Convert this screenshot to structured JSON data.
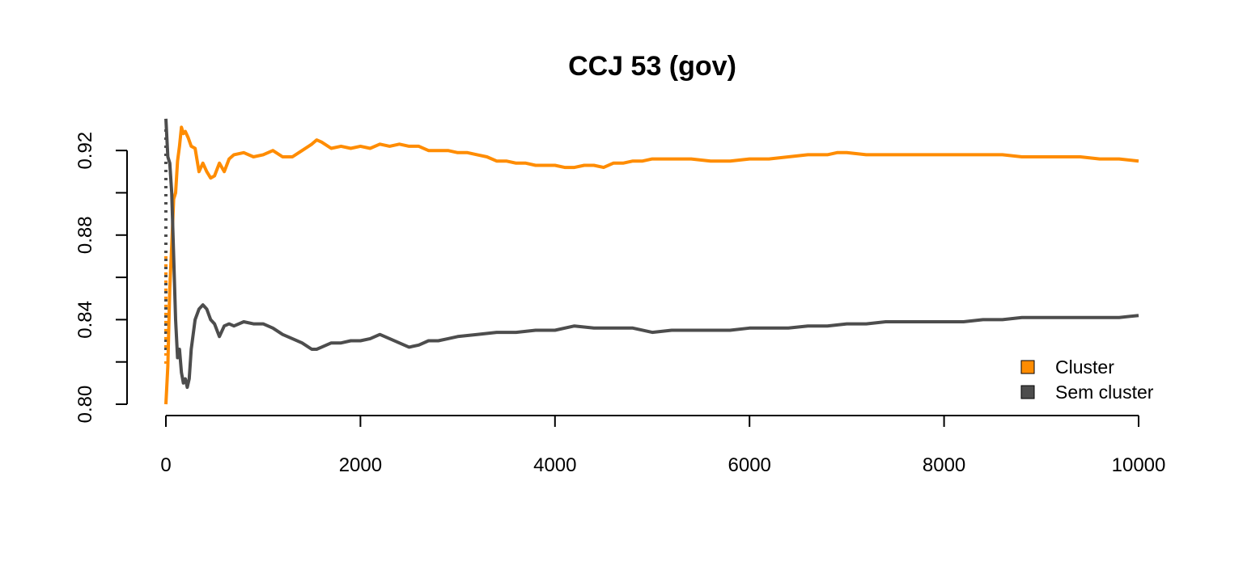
{
  "chart_data": {
    "type": "line",
    "title": "CCJ 53 (gov)",
    "xlabel": "",
    "ylabel": "",
    "xlim": [
      0,
      10000
    ],
    "ylim": [
      0.8,
      0.93
    ],
    "x_ticks": [
      0,
      2000,
      4000,
      6000,
      8000,
      10000
    ],
    "x_tick_labels": [
      "0",
      "2000",
      "4000",
      "6000",
      "8000",
      "10000"
    ],
    "y_ticks": [
      0.8,
      0.82,
      0.84,
      0.86,
      0.88,
      0.9,
      0.92
    ],
    "y_tick_labels": [
      "0.80",
      "",
      "0.84",
      "",
      "0.88",
      "",
      "0.92"
    ],
    "grid": false,
    "legend_position": "bottom-right",
    "series": [
      {
        "name": "Cluster",
        "color": "#FF8C00",
        "x": [
          0,
          20,
          40,
          60,
          80,
          100,
          120,
          140,
          160,
          180,
          200,
          230,
          260,
          300,
          340,
          380,
          420,
          460,
          500,
          550,
          600,
          650,
          700,
          800,
          900,
          1000,
          1100,
          1200,
          1300,
          1400,
          1500,
          1550,
          1600,
          1700,
          1800,
          1900,
          2000,
          2100,
          2200,
          2300,
          2400,
          2500,
          2600,
          2700,
          2800,
          2900,
          3000,
          3100,
          3200,
          3300,
          3400,
          3500,
          3600,
          3700,
          3800,
          3900,
          4000,
          4100,
          4200,
          4300,
          4400,
          4500,
          4600,
          4700,
          4800,
          4900,
          5000,
          5200,
          5400,
          5600,
          5800,
          6000,
          6200,
          6400,
          6600,
          6800,
          6900,
          7000,
          7200,
          7400,
          7600,
          7800,
          8000,
          8200,
          8400,
          8600,
          8800,
          9000,
          9200,
          9400,
          9600,
          9800,
          10000
        ],
        "values": [
          0.8,
          0.818,
          0.855,
          0.875,
          0.897,
          0.9,
          0.915,
          0.922,
          0.931,
          0.928,
          0.929,
          0.926,
          0.922,
          0.921,
          0.91,
          0.914,
          0.91,
          0.907,
          0.908,
          0.914,
          0.91,
          0.916,
          0.918,
          0.919,
          0.917,
          0.918,
          0.92,
          0.917,
          0.917,
          0.92,
          0.923,
          0.925,
          0.924,
          0.921,
          0.922,
          0.921,
          0.922,
          0.921,
          0.923,
          0.922,
          0.923,
          0.922,
          0.922,
          0.92,
          0.92,
          0.92,
          0.919,
          0.919,
          0.918,
          0.917,
          0.915,
          0.915,
          0.914,
          0.914,
          0.913,
          0.913,
          0.913,
          0.912,
          0.912,
          0.913,
          0.913,
          0.912,
          0.914,
          0.914,
          0.915,
          0.915,
          0.916,
          0.916,
          0.916,
          0.915,
          0.915,
          0.916,
          0.916,
          0.917,
          0.918,
          0.918,
          0.919,
          0.919,
          0.918,
          0.918,
          0.918,
          0.918,
          0.918,
          0.918,
          0.918,
          0.918,
          0.917,
          0.917,
          0.917,
          0.917,
          0.916,
          0.916,
          0.915
        ]
      },
      {
        "name": "Sem cluster",
        "color": "#4D4D4D",
        "x": [
          0,
          20,
          40,
          60,
          80,
          100,
          120,
          140,
          160,
          180,
          200,
          220,
          240,
          260,
          300,
          340,
          380,
          420,
          460,
          500,
          550,
          600,
          650,
          700,
          800,
          900,
          1000,
          1100,
          1200,
          1300,
          1400,
          1500,
          1550,
          1600,
          1700,
          1800,
          1900,
          2000,
          2100,
          2200,
          2300,
          2400,
          2500,
          2600,
          2700,
          2800,
          2900,
          3000,
          3200,
          3400,
          3600,
          3800,
          4000,
          4200,
          4400,
          4600,
          4800,
          5000,
          5200,
          5400,
          5600,
          5800,
          6000,
          6200,
          6400,
          6600,
          6800,
          7000,
          7200,
          7400,
          7600,
          7800,
          8000,
          8200,
          8400,
          8600,
          8800,
          9000,
          9200,
          9400,
          9600,
          9800,
          10000
        ],
        "values": [
          0.935,
          0.917,
          0.914,
          0.9,
          0.87,
          0.84,
          0.822,
          0.826,
          0.815,
          0.81,
          0.812,
          0.808,
          0.812,
          0.826,
          0.84,
          0.845,
          0.847,
          0.845,
          0.84,
          0.838,
          0.832,
          0.837,
          0.838,
          0.837,
          0.839,
          0.838,
          0.838,
          0.836,
          0.833,
          0.831,
          0.829,
          0.826,
          0.826,
          0.827,
          0.829,
          0.829,
          0.83,
          0.83,
          0.831,
          0.833,
          0.831,
          0.829,
          0.827,
          0.828,
          0.83,
          0.83,
          0.831,
          0.832,
          0.833,
          0.834,
          0.834,
          0.835,
          0.835,
          0.837,
          0.836,
          0.836,
          0.836,
          0.834,
          0.835,
          0.835,
          0.835,
          0.835,
          0.836,
          0.836,
          0.836,
          0.837,
          0.837,
          0.838,
          0.838,
          0.839,
          0.839,
          0.839,
          0.839,
          0.839,
          0.84,
          0.84,
          0.841,
          0.841,
          0.841,
          0.841,
          0.841,
          0.841,
          0.842
        ]
      }
    ],
    "vertical_dotted_lines": [
      {
        "series": "Sem cluster",
        "x": 0,
        "from": 0.93,
        "to": 0.824,
        "color": "#4D4D4D"
      },
      {
        "series": "Cluster",
        "x": 0,
        "from": 0.87,
        "to": 0.818,
        "color": "#FF8C00"
      }
    ]
  }
}
